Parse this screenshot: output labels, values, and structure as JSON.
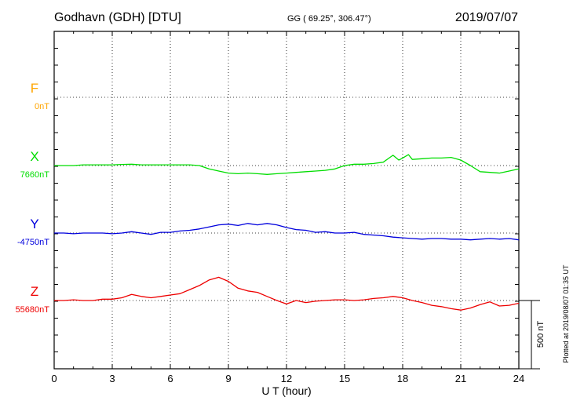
{
  "header": {
    "station": "Godhavn (GDH)  [DTU]",
    "coords": "GG ( 69.25°, 306.47°)",
    "date": "2019/07/07"
  },
  "footer": {
    "plotted": "Plotted at 2019/08/07 01:35 UT"
  },
  "colors": {
    "F": "#ffa500",
    "X": "#00dd00",
    "Y": "#0000dd",
    "Z": "#ee0000",
    "axis": "#000000",
    "grid": "#000000"
  },
  "chart_data": {
    "type": "line",
    "xlabel": "U T (hour)",
    "xlim": [
      0,
      24
    ],
    "x_ticks": [
      "0",
      "3",
      "6",
      "9",
      "12",
      "15",
      "18",
      "21",
      "24"
    ],
    "scale_bar": {
      "label": "500 nT",
      "value_nT": 500
    },
    "series": [
      {
        "name": "F",
        "baseline_label": "0nT",
        "values": []
      },
      {
        "name": "X",
        "baseline_label": "7660nT",
        "x": [
          0,
          0.5,
          1,
          1.5,
          2,
          2.5,
          3,
          3.5,
          4,
          4.5,
          5,
          5.5,
          6,
          6.5,
          7,
          7.5,
          8,
          8.5,
          9,
          9.5,
          10,
          10.5,
          11,
          11.5,
          12,
          12.5,
          13,
          13.5,
          14,
          14.5,
          15,
          15.5,
          16,
          16.5,
          17,
          17.3,
          17.5,
          17.8,
          18,
          18.3,
          18.5,
          19,
          19.5,
          20,
          20.5,
          21,
          21.5,
          22,
          22.5,
          23,
          23.5,
          24
        ],
        "values": [
          0,
          0,
          0,
          5,
          5,
          5,
          5,
          8,
          10,
          5,
          5,
          5,
          5,
          5,
          5,
          0,
          -25,
          -40,
          -55,
          -60,
          -55,
          -60,
          -65,
          -60,
          -55,
          -50,
          -45,
          -40,
          -35,
          -25,
          0,
          10,
          10,
          15,
          25,
          55,
          75,
          40,
          55,
          80,
          45,
          50,
          55,
          55,
          60,
          40,
          0,
          -45,
          -50,
          -55,
          -40,
          -25
        ]
      },
      {
        "name": "Y",
        "baseline_label": "-4750nT",
        "x": [
          0,
          0.5,
          1,
          1.5,
          2,
          2.5,
          3,
          3.5,
          4,
          4.5,
          5,
          5.5,
          6,
          6.5,
          7,
          7.5,
          8,
          8.5,
          9,
          9.5,
          10,
          10.5,
          11,
          11.5,
          12,
          12.5,
          13,
          13.5,
          14,
          14.5,
          15,
          15.5,
          16,
          16.5,
          17,
          17.5,
          18,
          18.5,
          19,
          19.5,
          20,
          20.5,
          21,
          21.5,
          22,
          22.5,
          23,
          23.5,
          24
        ],
        "values": [
          0,
          0,
          -5,
          0,
          0,
          0,
          -5,
          0,
          10,
          0,
          -10,
          5,
          5,
          15,
          20,
          30,
          45,
          60,
          65,
          55,
          70,
          60,
          70,
          60,
          40,
          25,
          20,
          5,
          10,
          0,
          0,
          5,
          -10,
          -15,
          -20,
          -30,
          -35,
          -40,
          -45,
          -40,
          -40,
          -45,
          -45,
          -50,
          -45,
          -40,
          -45,
          -40,
          -50
        ]
      },
      {
        "name": "Z",
        "baseline_label": "55680nT",
        "x": [
          0,
          0.5,
          1,
          1.5,
          2,
          2.5,
          3,
          3.5,
          4,
          4.5,
          5,
          5.5,
          6,
          6.5,
          7,
          7.5,
          8,
          8.5,
          9,
          9.5,
          10,
          10.5,
          11,
          11.5,
          12,
          12.5,
          13,
          13.5,
          14,
          14.5,
          15,
          15.5,
          16,
          16.5,
          17,
          17.5,
          18,
          18.5,
          19,
          19.5,
          20,
          20.5,
          21,
          21.5,
          22,
          22.5,
          23,
          23.5,
          24
        ],
        "values": [
          0,
          0,
          5,
          0,
          0,
          10,
          10,
          20,
          45,
          30,
          20,
          30,
          40,
          50,
          80,
          110,
          150,
          170,
          140,
          90,
          70,
          60,
          30,
          0,
          -25,
          0,
          -15,
          -5,
          0,
          5,
          5,
          0,
          5,
          15,
          20,
          30,
          20,
          0,
          -15,
          -35,
          -45,
          -60,
          -70,
          -55,
          -30,
          -10,
          -40,
          -35,
          -20
        ]
      }
    ]
  }
}
